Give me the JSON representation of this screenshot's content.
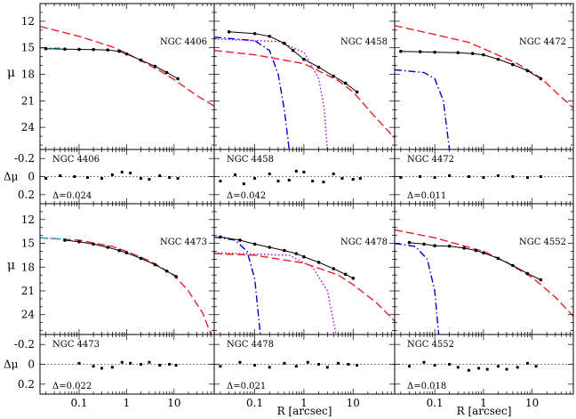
{
  "chart_data": [
    {
      "type": "line",
      "galaxy": "NGC 4406",
      "delta_label": "Δ=0.024",
      "xlabel": "",
      "ylabel": "μ",
      "resid_ylabel": "Δμ",
      "x_scale": "log",
      "xlim": [
        0.015,
        70
      ],
      "ylim": [
        10.0,
        26.5
      ],
      "resid_ylim": [
        -0.3,
        0.3
      ],
      "series": [
        {
          "style": "dashed",
          "color": "#e8202a",
          "points": [
            [
              0.015,
              12.6
            ],
            [
              0.1,
              13.7
            ],
            [
              0.5,
              14.9
            ],
            [
              1,
              15.6
            ],
            [
              5,
              17.6
            ],
            [
              10,
              18.6
            ],
            [
              30,
              20.4
            ],
            [
              70,
              21.6
            ]
          ]
        },
        {
          "style": "dot-dash",
          "color": "#00aacc",
          "points": [
            [
              0.015,
              15.0
            ],
            [
              0.04,
              15.05
            ]
          ]
        }
      ],
      "profile": [
        [
          0.02,
          15.1
        ],
        [
          0.05,
          15.15
        ],
        [
          0.1,
          15.18
        ],
        [
          0.2,
          15.2
        ],
        [
          0.4,
          15.25
        ],
        [
          0.7,
          15.4
        ],
        [
          1,
          15.7
        ],
        [
          2,
          16.4
        ],
        [
          4,
          17.1
        ],
        [
          7,
          17.8
        ],
        [
          12,
          18.5
        ]
      ],
      "residuals": [
        [
          0.02,
          0.02
        ],
        [
          0.04,
          -0.01
        ],
        [
          0.08,
          0.0
        ],
        [
          0.15,
          0.01
        ],
        [
          0.3,
          0.02
        ],
        [
          0.5,
          -0.02
        ],
        [
          0.8,
          -0.05
        ],
        [
          1.2,
          -0.04
        ],
        [
          2,
          0.02
        ],
        [
          3,
          0.03
        ],
        [
          5,
          -0.01
        ],
        [
          8,
          0.01
        ],
        [
          12,
          0.02
        ]
      ]
    },
    {
      "type": "line",
      "galaxy": "NGC 4458",
      "delta_label": "Δ=0.042",
      "xlabel": "",
      "ylabel": "",
      "resid_ylabel": "",
      "x_scale": "log",
      "xlim": [
        0.015,
        70
      ],
      "ylim": [
        10.0,
        26.5
      ],
      "resid_ylim": [
        -0.3,
        0.3
      ],
      "series": [
        {
          "style": "dot-dash",
          "color": "#0000cc",
          "points": [
            [
              0.015,
              13.8
            ],
            [
              0.1,
              14.2
            ],
            [
              0.2,
              15.3
            ],
            [
              0.3,
              18.0
            ],
            [
              0.4,
              22.0
            ],
            [
              0.5,
              26.5
            ]
          ]
        },
        {
          "style": "dotted",
          "color": "#aa00ee",
          "points": [
            [
              0.015,
              14.0
            ],
            [
              0.3,
              14.3
            ],
            [
              1,
              15.5
            ],
            [
              2,
              18.5
            ],
            [
              2.6,
              22.0
            ],
            [
              3.0,
              26.5
            ]
          ]
        },
        {
          "style": "dashed",
          "color": "#e8202a",
          "points": [
            [
              0.015,
              15.3
            ],
            [
              0.1,
              15.8
            ],
            [
              1,
              16.8
            ],
            [
              5,
              18.7
            ],
            [
              10,
              20.0
            ],
            [
              30,
              23.0
            ],
            [
              70,
              25.2
            ]
          ]
        }
      ],
      "profile": [
        [
          0.03,
          13.2
        ],
        [
          0.1,
          13.4
        ],
        [
          0.2,
          13.7
        ],
        [
          0.4,
          14.5
        ],
        [
          0.6,
          15.3
        ],
        [
          1,
          16.3
        ],
        [
          2,
          17.2
        ],
        [
          4,
          18.2
        ],
        [
          7,
          19.0
        ],
        [
          12,
          20.0
        ]
      ],
      "residuals": [
        [
          0.02,
          0.05
        ],
        [
          0.04,
          -0.02
        ],
        [
          0.06,
          0.08
        ],
        [
          0.1,
          0.02
        ],
        [
          0.2,
          -0.03
        ],
        [
          0.3,
          0.05
        ],
        [
          0.5,
          0.04
        ],
        [
          0.7,
          -0.06
        ],
        [
          1,
          -0.05
        ],
        [
          1.5,
          0.05
        ],
        [
          2.5,
          0.06
        ],
        [
          4,
          -0.03
        ],
        [
          6,
          0.02
        ],
        [
          10,
          0.03
        ],
        [
          14,
          0.02
        ]
      ]
    },
    {
      "type": "line",
      "galaxy": "NGC 4472",
      "delta_label": "Δ=0.011",
      "xlabel": "",
      "ylabel": "",
      "resid_ylabel": "",
      "x_scale": "log",
      "xlim": [
        0.015,
        70
      ],
      "ylim": [
        10.0,
        26.5
      ],
      "resid_ylim": [
        -0.3,
        0.3
      ],
      "series": [
        {
          "style": "dashed",
          "color": "#e8202a",
          "points": [
            [
              0.015,
              12.5
            ],
            [
              0.1,
              13.5
            ],
            [
              0.5,
              14.4
            ],
            [
              1,
              15.1
            ],
            [
              5,
              16.8
            ],
            [
              15,
              18.4
            ],
            [
              40,
              20.6
            ],
            [
              70,
              21.8
            ]
          ]
        },
        {
          "style": "dot-dash",
          "color": "#0000cc",
          "points": [
            [
              0.015,
              17.5
            ],
            [
              0.06,
              17.8
            ],
            [
              0.1,
              18.5
            ],
            [
              0.15,
              21.0
            ],
            [
              0.2,
              26.5
            ]
          ]
        }
      ],
      "profile": [
        [
          0.02,
          15.4
        ],
        [
          0.05,
          15.45
        ],
        [
          0.1,
          15.5
        ],
        [
          0.3,
          15.55
        ],
        [
          0.6,
          15.65
        ],
        [
          1,
          15.8
        ],
        [
          2,
          16.3
        ],
        [
          4,
          16.9
        ],
        [
          8,
          17.6
        ],
        [
          15,
          18.5
        ]
      ],
      "residuals": [
        [
          0.02,
          0.01
        ],
        [
          0.05,
          0.0
        ],
        [
          0.1,
          0.01
        ],
        [
          0.2,
          -0.01
        ],
        [
          0.5,
          0.0
        ],
        [
          1,
          0.01
        ],
        [
          2,
          -0.01
        ],
        [
          4,
          0.0
        ],
        [
          8,
          0.01
        ],
        [
          15,
          0.0
        ]
      ]
    },
    {
      "type": "line",
      "galaxy": "NGC 4473",
      "delta_label": "Δ=0.022",
      "xlabel": "",
      "ylabel": "μ",
      "resid_ylabel": "Δμ",
      "x_scale": "log",
      "xlim": [
        0.015,
        70
      ],
      "ylim": [
        10.0,
        26.5
      ],
      "resid_ylim": [
        -0.3,
        0.3
      ],
      "series": [
        {
          "style": "dashed",
          "color": "#e8202a",
          "points": [
            [
              0.015,
              14.3
            ],
            [
              0.1,
              14.6
            ],
            [
              0.5,
              15.4
            ],
            [
              1,
              16.0
            ],
            [
              3,
              17.2
            ],
            [
              10,
              19.0
            ],
            [
              20,
              21.0
            ],
            [
              40,
              23.8
            ],
            [
              60,
              26.5
            ]
          ]
        },
        {
          "style": "dot-dash",
          "color": "#00aacc",
          "points": [
            [
              0.015,
              14.3
            ],
            [
              0.06,
              14.5
            ]
          ]
        }
      ],
      "profile": [
        [
          0.05,
          14.6
        ],
        [
          0.1,
          14.8
        ],
        [
          0.2,
          15.1
        ],
        [
          0.4,
          15.5
        ],
        [
          0.7,
          15.9
        ],
        [
          1,
          16.2
        ],
        [
          2,
          16.9
        ],
        [
          4,
          17.7
        ],
        [
          7,
          18.5
        ],
        [
          11,
          19.2
        ]
      ],
      "residuals": [
        [
          0.1,
          -0.01
        ],
        [
          0.2,
          0.02
        ],
        [
          0.3,
          0.04
        ],
        [
          0.5,
          0.03
        ],
        [
          0.8,
          -0.02
        ],
        [
          1.2,
          -0.01
        ],
        [
          2,
          0.0
        ],
        [
          3,
          -0.02
        ],
        [
          5,
          0.01
        ],
        [
          8,
          0.0
        ],
        [
          11,
          0.01
        ]
      ]
    },
    {
      "type": "line",
      "galaxy": "NGC 4478",
      "delta_label": "Δ=0.021",
      "xlabel": "R [arcsec]",
      "ylabel": "",
      "resid_ylabel": "",
      "x_scale": "log",
      "xlim": [
        0.015,
        70
      ],
      "ylim": [
        10.0,
        26.5
      ],
      "resid_ylim": [
        -0.3,
        0.3
      ],
      "series": [
        {
          "style": "dot-dash",
          "color": "#0000cc",
          "points": [
            [
              0.015,
              14.2
            ],
            [
              0.04,
              14.6
            ],
            [
              0.07,
              16.0
            ],
            [
              0.1,
              19.5
            ],
            [
              0.13,
              26.5
            ]
          ]
        },
        {
          "style": "dotted",
          "color": "#aa00ee",
          "points": [
            [
              0.015,
              16.2
            ],
            [
              0.5,
              16.5
            ],
            [
              1.5,
              18.0
            ],
            [
              3,
              21.0
            ],
            [
              4.5,
              26.5
            ]
          ]
        },
        {
          "style": "dashed",
          "color": "#e8202a",
          "points": [
            [
              0.015,
              16.3
            ],
            [
              0.1,
              16.5
            ],
            [
              1,
              17.5
            ],
            [
              5,
              19.0
            ],
            [
              10,
              20.2
            ],
            [
              30,
              22.5
            ],
            [
              70,
              24.8
            ]
          ]
        }
      ],
      "profile": [
        [
          0.02,
          14.2
        ],
        [
          0.05,
          14.6
        ],
        [
          0.1,
          15.1
        ],
        [
          0.2,
          15.5
        ],
        [
          0.4,
          15.9
        ],
        [
          0.7,
          16.3
        ],
        [
          1,
          16.7
        ],
        [
          2,
          17.4
        ],
        [
          4,
          18.2
        ],
        [
          7,
          18.9
        ],
        [
          10,
          19.4
        ]
      ],
      "residuals": [
        [
          0.02,
          0.02
        ],
        [
          0.05,
          -0.02
        ],
        [
          0.1,
          0.01
        ],
        [
          0.2,
          0.03
        ],
        [
          0.4,
          -0.01
        ],
        [
          0.7,
          0.02
        ],
        [
          1.2,
          -0.02
        ],
        [
          2,
          0.0
        ],
        [
          3,
          0.03
        ],
        [
          5,
          -0.01
        ],
        [
          8,
          0.0
        ],
        [
          12,
          0.01
        ]
      ]
    },
    {
      "type": "line",
      "galaxy": "NGC 4552",
      "delta_label": "Δ=0.018",
      "xlabel": "R [arcsec]",
      "ylabel": "",
      "resid_ylabel": "",
      "x_scale": "log",
      "xlim": [
        0.015,
        70
      ],
      "ylim": [
        10.0,
        26.5
      ],
      "resid_ylim": [
        -0.3,
        0.3
      ],
      "series": [
        {
          "style": "dashed",
          "color": "#e8202a",
          "points": [
            [
              0.015,
              13.3
            ],
            [
              0.1,
              14.3
            ],
            [
              0.5,
              15.5
            ],
            [
              1,
              16.0
            ],
            [
              3,
              17.4
            ],
            [
              10,
              19.3
            ],
            [
              30,
              21.8
            ],
            [
              70,
              24.2
            ]
          ]
        },
        {
          "style": "dot-dash",
          "color": "#0000cc",
          "points": [
            [
              0.015,
              15.0
            ],
            [
              0.04,
              15.4
            ],
            [
              0.07,
              17.0
            ],
            [
              0.1,
              21.0
            ],
            [
              0.12,
              26.5
            ]
          ]
        }
      ],
      "profile": [
        [
          0.03,
          14.9
        ],
        [
          0.06,
          15.1
        ],
        [
          0.1,
          15.3
        ],
        [
          0.2,
          15.35
        ],
        [
          0.4,
          15.6
        ],
        [
          0.7,
          15.9
        ],
        [
          1,
          16.2
        ],
        [
          2,
          16.9
        ],
        [
          4,
          17.8
        ],
        [
          8,
          18.8
        ],
        [
          15,
          19.6
        ]
      ],
      "residuals": [
        [
          0.03,
          0.02
        ],
        [
          0.06,
          -0.02
        ],
        [
          0.1,
          0.01
        ],
        [
          0.2,
          0.0
        ],
        [
          0.3,
          0.03
        ],
        [
          0.5,
          0.06
        ],
        [
          0.8,
          0.04
        ],
        [
          1.2,
          0.05
        ],
        [
          2,
          0.02
        ],
        [
          3,
          0.05
        ],
        [
          5,
          0.03
        ],
        [
          8,
          -0.01
        ],
        [
          12,
          0.02
        ]
      ]
    }
  ],
  "axes": {
    "y_ticks": [
      "12",
      "15",
      "18",
      "21",
      "24"
    ],
    "resid_ticks": [
      "-0.2",
      "0",
      "0.2"
    ],
    "x_ticks": [
      "0.1",
      "1",
      "10"
    ]
  }
}
